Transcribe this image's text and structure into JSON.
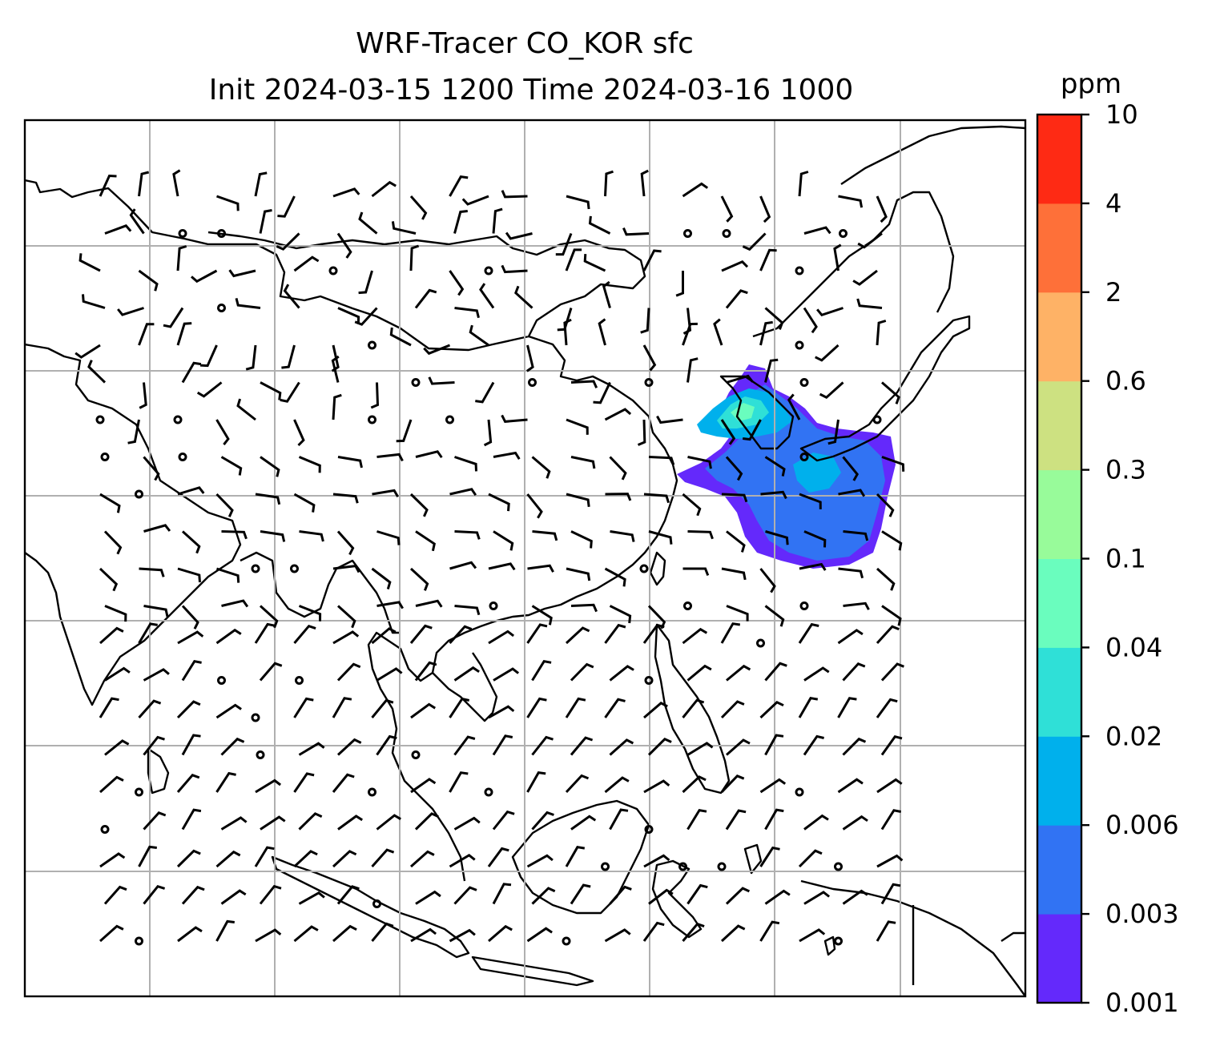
{
  "title": {
    "line1": "WRF-Tracer CO_KOR sfc",
    "line2": "Init 2024-03-15 1200 Time 2024-03-16 1000"
  },
  "colorbar": {
    "unit": "ppm",
    "levels": [
      "0.001",
      "0.003",
      "0.006",
      "0.02",
      "0.04",
      "0.1",
      "0.3",
      "0.6",
      "2",
      "4",
      "10"
    ],
    "colors": [
      "#6429fb",
      "#3173f3",
      "#00b0ec",
      "#2fe0d7",
      "#6afdbe",
      "#98fb9a",
      "#cde181",
      "#feb266",
      "#fe7039",
      "#fe2a14"
    ]
  },
  "map": {
    "coastline_color": "#000000",
    "gridline_color": "#b0b0b0",
    "wind_barb_color": "#000000",
    "plume_colors": {
      "outer": "#6429fb",
      "mid": "#3173f3",
      "inner": "#00b0ec",
      "core": "#2fe0d7",
      "peak": "#6afdbe"
    }
  }
}
